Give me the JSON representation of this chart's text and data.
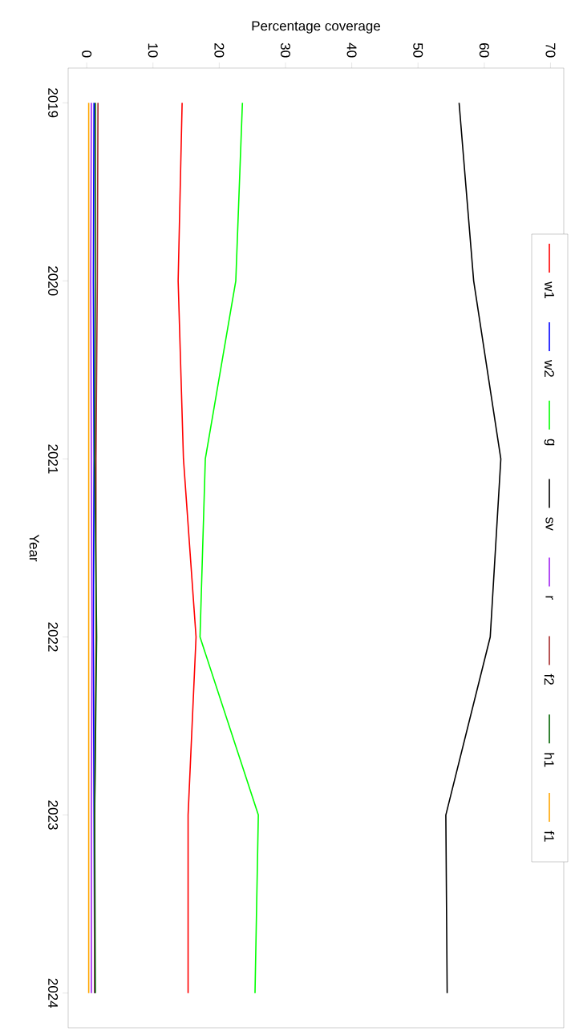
{
  "chart_data": {
    "type": "line",
    "orientation": "horizontal",
    "xlabel": "Percentage coverage",
    "ylabel": "Year",
    "categories": [
      "2019",
      "2020",
      "2021",
      "2022",
      "2023",
      "2024"
    ],
    "xlim": [
      -2.8,
      72
    ],
    "xticks": [
      0,
      10,
      20,
      30,
      40,
      50,
      60,
      70
    ],
    "grid": false,
    "legend": "right",
    "marker": "none",
    "line_style": "solid",
    "series": [
      {
        "name": "w1",
        "color": "#ff0000",
        "values": [
          14.4,
          13.8,
          14.6,
          16.5,
          15.3,
          15.3
        ]
      },
      {
        "name": "w2",
        "color": "#0000ff",
        "values": [
          1.1,
          1.0,
          1.1,
          1.0,
          1.1,
          1.2
        ]
      },
      {
        "name": "g",
        "color": "#00ff00",
        "values": [
          23.5,
          22.5,
          17.9,
          17.1,
          25.9,
          25.4
        ]
      },
      {
        "name": "sv",
        "color": "#000000",
        "values": [
          56.2,
          58.4,
          62.5,
          60.9,
          54.2,
          54.4
        ]
      },
      {
        "name": "r",
        "color": "#a020f0",
        "values": [
          0.7,
          0.6,
          0.7,
          0.8,
          0.7,
          0.7
        ]
      },
      {
        "name": "f2",
        "color": "#a52a2a",
        "values": [
          1.7,
          1.6,
          1.4,
          1.4,
          1.2,
          1.2
        ]
      },
      {
        "name": "h1",
        "color": "#006400",
        "values": [
          1.3,
          1.3,
          1.2,
          1.5,
          1.2,
          1.3
        ]
      },
      {
        "name": "f1",
        "color": "#ffa500",
        "values": [
          0.3,
          0.3,
          0.3,
          0.3,
          0.3,
          0.3
        ]
      }
    ]
  }
}
